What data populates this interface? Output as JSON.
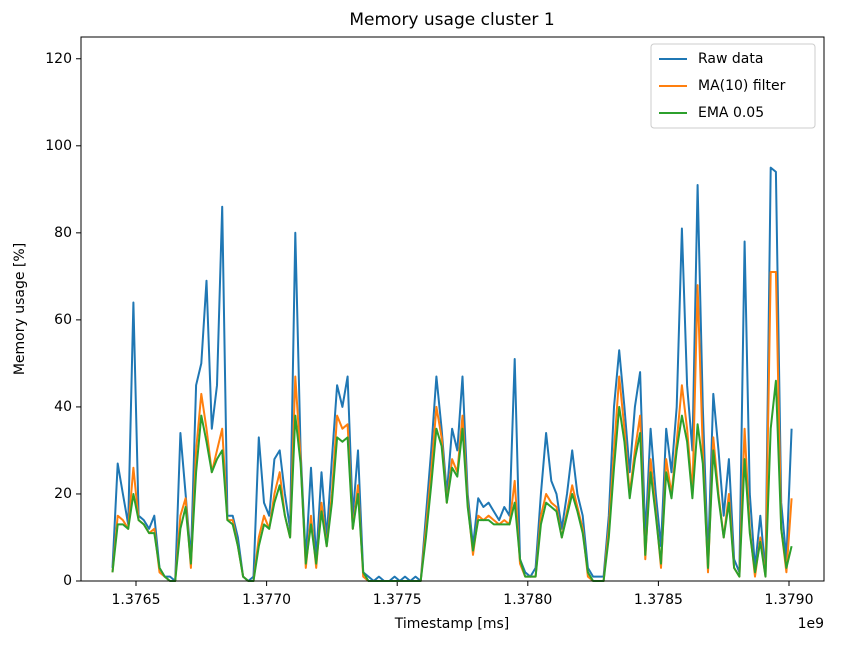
{
  "chart_data": {
    "type": "line",
    "title": "Memory usage cluster 1",
    "x_label": "Timestamp [ms]",
    "y_label": "Memory usage [%]",
    "x_offset_label": "1e9",
    "x": [
      1376410000,
      1376430000,
      1376450000,
      1376470000,
      1376490000,
      1376510000,
      1376530000,
      1376550000,
      1376570000,
      1376590000,
      1376610000,
      1376630000,
      1376650000,
      1376670000,
      1376690000,
      1376710000,
      1376730000,
      1376750000,
      1376770000,
      1376790000,
      1376810000,
      1376830000,
      1376850000,
      1376870000,
      1376890000,
      1376910000,
      1376930000,
      1376950000,
      1376970000,
      1376990000,
      1377010000,
      1377030000,
      1377050000,
      1377070000,
      1377090000,
      1377110000,
      1377130000,
      1377150000,
      1377170000,
      1377190000,
      1377210000,
      1377230000,
      1377250000,
      1377270000,
      1377290000,
      1377310000,
      1377330000,
      1377350000,
      1377370000,
      1377390000,
      1377410000,
      1377430000,
      1377450000,
      1377470000,
      1377490000,
      1377510000,
      1377530000,
      1377550000,
      1377570000,
      1377590000,
      1377610000,
      1377630000,
      1377650000,
      1377670000,
      1377690000,
      1377710000,
      1377730000,
      1377750000,
      1377770000,
      1377790000,
      1377810000,
      1377830000,
      1377850000,
      1377870000,
      1377890000,
      1377910000,
      1377930000,
      1377950000,
      1377970000,
      1377990000,
      1378010000,
      1378030000,
      1378050000,
      1378070000,
      1378090000,
      1378110000,
      1378130000,
      1378150000,
      1378170000,
      1378190000,
      1378210000,
      1378230000,
      1378250000,
      1378270000,
      1378290000,
      1378310000,
      1378330000,
      1378350000,
      1378370000,
      1378390000,
      1378410000,
      1378430000,
      1378450000,
      1378470000,
      1378490000,
      1378510000,
      1378530000,
      1378550000,
      1378570000,
      1378590000,
      1378610000,
      1378630000,
      1378650000,
      1378670000,
      1378690000,
      1378710000,
      1378730000,
      1378750000,
      1378770000,
      1378790000,
      1378810000,
      1378830000,
      1378850000,
      1378870000,
      1378890000,
      1378910000,
      1378930000,
      1378950000,
      1378970000,
      1378990000,
      1379010000
    ],
    "series": [
      {
        "name": "Raw data",
        "color": "#1f77b4",
        "values": [
          3,
          27,
          20,
          13,
          64,
          15,
          14,
          12,
          15,
          3,
          1,
          1,
          0,
          34,
          20,
          5,
          45,
          50,
          69,
          35,
          45,
          86,
          15,
          15,
          10,
          1,
          0,
          1,
          33,
          18,
          15,
          28,
          30,
          20,
          12,
          80,
          30,
          5,
          26,
          5,
          25,
          10,
          28,
          45,
          40,
          47,
          15,
          30,
          2,
          1,
          0,
          1,
          0,
          0,
          1,
          0,
          1,
          0,
          1,
          0,
          15,
          30,
          47,
          35,
          20,
          35,
          30,
          47,
          20,
          8,
          19,
          17,
          18,
          16,
          14,
          17,
          15,
          51,
          5,
          2,
          1,
          3,
          20,
          34,
          23,
          20,
          12,
          20,
          30,
          20,
          15,
          3,
          1,
          1,
          1,
          15,
          40,
          53,
          40,
          25,
          40,
          48,
          10,
          35,
          20,
          8,
          35,
          25,
          40,
          81,
          45,
          30,
          91,
          40,
          5,
          43,
          30,
          15,
          28,
          5,
          2,
          78,
          20,
          3,
          15,
          2,
          95,
          94,
          18,
          5,
          35
        ]
      },
      {
        "name": "MA(10) filter",
        "color": "#ff7f0e",
        "values": [
          2,
          15,
          14,
          12,
          26,
          14,
          13,
          11,
          12,
          2,
          1,
          0,
          0,
          15,
          19,
          3,
          30,
          43,
          35,
          25,
          30,
          35,
          14,
          14,
          8,
          1,
          0,
          0,
          10,
          15,
          12,
          20,
          25,
          15,
          10,
          47,
          28,
          3,
          15,
          3,
          18,
          8,
          20,
          38,
          35,
          36,
          12,
          22,
          1,
          0,
          0,
          0,
          0,
          0,
          0,
          0,
          0,
          0,
          0,
          0,
          12,
          25,
          40,
          33,
          18,
          28,
          25,
          38,
          18,
          6,
          15,
          14,
          15,
          14,
          13,
          14,
          13,
          23,
          4,
          1,
          1,
          1,
          15,
          20,
          18,
          17,
          10,
          16,
          22,
          17,
          12,
          1,
          0,
          0,
          0,
          12,
          30,
          47,
          35,
          20,
          30,
          38,
          5,
          28,
          16,
          3,
          28,
          20,
          32,
          45,
          35,
          20,
          68,
          30,
          2,
          33,
          20,
          10,
          20,
          3,
          1,
          35,
          12,
          1,
          10,
          1,
          71,
          71,
          12,
          2,
          19
        ]
      },
      {
        "name": "EMA 0.05",
        "color": "#2ca02c",
        "values": [
          2,
          13,
          13,
          12,
          20,
          14,
          13,
          11,
          11,
          3,
          1,
          0,
          0,
          12,
          17,
          4,
          25,
          38,
          32,
          25,
          28,
          30,
          14,
          13,
          8,
          1,
          0,
          0,
          8,
          13,
          12,
          18,
          22,
          15,
          10,
          38,
          27,
          4,
          13,
          4,
          16,
          8,
          18,
          33,
          32,
          33,
          12,
          20,
          2,
          0,
          0,
          0,
          0,
          0,
          0,
          0,
          0,
          0,
          0,
          0,
          10,
          22,
          35,
          31,
          18,
          26,
          24,
          35,
          17,
          7,
          14,
          14,
          14,
          13,
          13,
          13,
          13,
          18,
          5,
          1,
          1,
          1,
          13,
          18,
          17,
          16,
          10,
          15,
          20,
          16,
          11,
          2,
          0,
          0,
          0,
          10,
          26,
          40,
          32,
          19,
          28,
          34,
          6,
          25,
          15,
          4,
          25,
          19,
          30,
          38,
          32,
          19,
          36,
          27,
          3,
          30,
          19,
          10,
          18,
          3,
          1,
          28,
          11,
          2,
          9,
          1,
          35,
          46,
          12,
          3,
          8
        ]
      }
    ],
    "xlim": [
      1376289400,
      1379134000
    ],
    "xticks": [
      {
        "value": 1376500000,
        "label": "1.3765"
      },
      {
        "value": 1377000000,
        "label": "1.3770"
      },
      {
        "value": 1377500000,
        "label": "1.3775"
      },
      {
        "value": 1378000000,
        "label": "1.3780"
      },
      {
        "value": 1378500000,
        "label": "1.3785"
      },
      {
        "value": 1379000000,
        "label": "1.3790"
      }
    ],
    "ylim": [
      0,
      125
    ],
    "yticks": [
      0,
      20,
      40,
      60,
      80,
      100,
      120
    ],
    "grid": false,
    "legend": "upper right"
  }
}
